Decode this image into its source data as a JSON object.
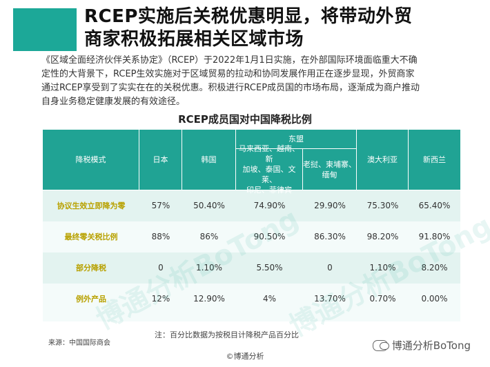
{
  "title": {
    "line1": "RCEP实施后关税优惠明显，将带动外贸",
    "line2": "商家积极拓展相关区域市场"
  },
  "intro": {
    "line1": "《区域全面经济伙伴关系协定》（RCEP）于2022年1月1日实施，在外部国际环境面临重大不确",
    "line2": "定性的大背景下，RCEP生效实施对于区域贸易的拉动和协同发展作用正在逐步显现，外贸商家",
    "line3": "通过RCEP享受到了实实在在的关税优惠。积极进行RCEP成员国的市场布局，逐渐成为商户推动",
    "line4": "自身业务稳定健康发展的有效途径。"
  },
  "table": {
    "title": "RCEP成员国对中国降税比例",
    "header": {
      "mode": "降税模式",
      "japan": "日本",
      "korea": "韩国",
      "asean": "东盟",
      "asean_a_l1": "马来西亚、越南、新",
      "asean_a_l2": "加坡、泰国、文莱、",
      "asean_a_l3": "印尼、菲律宾",
      "asean_b_l1": "老挝、柬埔寨、",
      "asean_b_l2": "缅甸",
      "australia": "澳大利亚",
      "newzealand": "新西兰"
    },
    "rows": [
      {
        "label": "协议生效立即降为零",
        "japan": "57%",
        "korea": "50.40%",
        "asean_a": "74.90%",
        "asean_b": "29.90%",
        "australia": "75.30%",
        "newzealand": "65.40%"
      },
      {
        "label": "最终零关税比例",
        "japan": "88%",
        "korea": "86%",
        "asean_a": "90.50%",
        "asean_b": "86.30%",
        "australia": "98.20%",
        "newzealand": "91.80%"
      },
      {
        "label": "部分降税",
        "japan": "0",
        "korea": "1.10%",
        "asean_a": "5.50%",
        "asean_b": "0",
        "australia": "1.10%",
        "newzealand": "8.20%"
      },
      {
        "label": "例外产品",
        "japan": "12%",
        "korea": "12.90%",
        "asean_a": "4%",
        "asean_b": "13.70%",
        "australia": "0.70%",
        "newzealand": "0.00%"
      }
    ]
  },
  "footer": {
    "note": "注：百分比数据为按税目计降税产品百分比",
    "source": "来源：中国国际商会",
    "copyright": "©博通分析",
    "brand": "博通分析BoTong",
    "watermark": "博通分析BoTong"
  },
  "colors": {
    "accent": "#1ca898",
    "header_bg": "#20a394",
    "label_text": "#b8a100"
  },
  "icons": {
    "brand": "wechat-icon"
  }
}
